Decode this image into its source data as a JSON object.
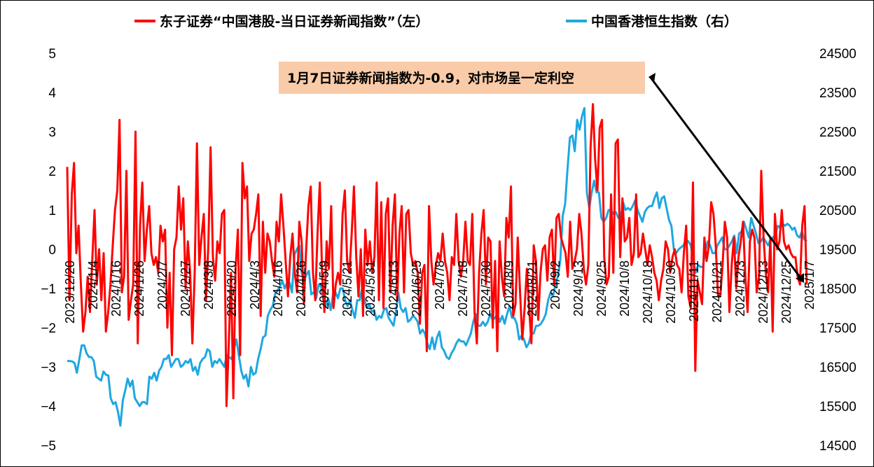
{
  "chart_data": {
    "type": "line",
    "legend": [
      {
        "label": "东子证券“中国港股-当日证券新闻指数”（左）",
        "color": "#ff0000"
      },
      {
        "label": "中国香港恒生指数（右）",
        "color": "#1ea7e1"
      }
    ],
    "x_labels": [
      "2023/12/20",
      "2024/1/4",
      "2024/1/16",
      "2024/1/26",
      "2024/2/7",
      "2024/2/27",
      "2024/3/8",
      "2024/3/20",
      "2024/4/3",
      "2024/4/16",
      "2024/4/26",
      "2024/5/9",
      "2024/5/21",
      "2024/5/31",
      "2024/6/13",
      "2024/6/25",
      "2024/7/8",
      "2024/7/18",
      "2024/7/30",
      "2024/8/9",
      "2024/8/21",
      "2024/9/2",
      "2024/9/13",
      "2024/9/25",
      "2024/10/8",
      "2024/10/18",
      "2024/10/30",
      "2024/11/11",
      "2024/11/21",
      "2024/12/3",
      "2024/12/13",
      "2024/12/25",
      "2025/1/7"
    ],
    "y_left": {
      "ticks": [
        "5",
        "4",
        "3",
        "2",
        "1",
        "0",
        "−1",
        "−2",
        "−3",
        "−4",
        "−5"
      ],
      "range": [
        -5,
        5
      ]
    },
    "y_right": {
      "ticks": [
        "24500",
        "23500",
        "22500",
        "21500",
        "20500",
        "19500",
        "18500",
        "17500",
        "16500",
        "15500",
        "14500"
      ],
      "range": [
        14500,
        24500
      ]
    },
    "series": [
      {
        "name": "东子证券“中国港股-当日证券新闻指数”（左）",
        "axis": "left",
        "color": "#ff0000",
        "values": [
          2.1,
          -1.3,
          1.4,
          2.2,
          -0.1,
          0.6,
          -0.9,
          -2.1,
          -1.6,
          -0.7,
          -1.6,
          -0.3,
          1.0,
          -0.9,
          0.0,
          -1.3,
          -0.1,
          -2.1,
          -1.6,
          -0.9,
          0.1,
          1.0,
          1.5,
          3.3,
          -1.1,
          -0.7,
          2.0,
          -1.8,
          -1.3,
          -0.9,
          3.0,
          -2.4,
          0.6,
          1.7,
          -0.3,
          0.5,
          1.1,
          -0.1,
          -0.4,
          -0.2,
          -0.6,
          0.6,
          0.2,
          0.5,
          -2.0,
          -0.6,
          -2.7,
          0.0,
          0.3,
          1.6,
          0.5,
          1.3,
          -1.0,
          0.2,
          -0.6,
          -2.4,
          -0.6,
          2.7,
          -0.4,
          0.3,
          0.9,
          -1.3,
          0.1,
          2.6,
          -0.2,
          -0.8,
          0.2,
          -0.1,
          0.9,
          1.0,
          -4.0,
          -2.4,
          -0.6,
          -3.8,
          -0.5,
          0.5,
          -2.7,
          2.2,
          1.3,
          1.6,
          -0.3,
          0.4,
          0.5,
          0.9,
          1.4,
          -1.7,
          0.7,
          -0.6,
          0.4,
          0.2,
          -0.3,
          -0.7,
          0.7,
          0.2,
          1.4,
          0.6,
          -0.3,
          -1.2,
          -0.2,
          0.4,
          -0.6,
          -1.1,
          0.7,
          0.2,
          -1.4,
          0.0,
          1.1,
          1.6,
          -0.6,
          -1.3,
          0.4,
          1.7,
          -0.6,
          -1.6,
          0.2,
          -0.5,
          1.1,
          -1.5,
          -0.9,
          -0.6,
          -0.9,
          0.9,
          1.5,
          -0.3,
          -0.6,
          0.4,
          1.6,
          -0.2,
          -1.2,
          0.0,
          -1.7,
          0.5,
          -0.4,
          0.2,
          -0.6,
          -0.2,
          1.7,
          -1.3,
          1.2,
          -1.5,
          0.9,
          1.3,
          -1.1,
          0.6,
          1.4,
          -1.3,
          0.4,
          1.1,
          -1.1,
          0.9,
          1.0,
          -0.1,
          -0.4,
          -0.3,
          -0.6,
          -1.9,
          -0.6,
          -0.4,
          -2.6,
          1.1,
          -0.3,
          -0.9,
          -0.4,
          -0.1,
          -0.3,
          0.4,
          -0.3,
          -0.6,
          -1.3,
          -0.2,
          -0.4,
          0.9,
          -0.3,
          -0.7,
          -0.3,
          0.7,
          -0.3,
          -0.4,
          0.9,
          -1.6,
          -2.4,
          -0.6,
          0.4,
          1.0,
          -0.9,
          0.3,
          0.2,
          -2.0,
          -0.3,
          -2.6,
          0.2,
          -0.7,
          -1.2,
          0.8,
          0.3,
          1.6,
          -1.7,
          -1.4,
          0.3,
          -1.1,
          -2.3,
          -1.5,
          -0.5,
          -1.5,
          -2.4,
          0.1,
          -0.3,
          -1.8,
          -0.6,
          0.0,
          0.1,
          -0.8,
          0.3,
          0.5,
          -0.9,
          0.8,
          0.9,
          0.3,
          0.1,
          -0.1,
          -0.7,
          0.7,
          -0.5,
          -0.3,
          0.0,
          0.9,
          0.4,
          -0.5,
          -0.9,
          -0.4,
          2.6,
          3.7,
          2.3,
          1.5,
          3.1,
          3.3,
          -0.2,
          -0.9,
          -0.7,
          1.4,
          -0.6,
          2.7,
          2.8,
          -0.2,
          1.3,
          0.2,
          0.3,
          0.8,
          -0.4,
          -0.1,
          1.4,
          -0.2,
          -0.1,
          0.4,
          0.0,
          -0.4,
          0.1,
          -0.2,
          -0.6,
          -0.8,
          -1.3,
          -0.8,
          -0.5,
          0.2,
          0.0,
          -0.6,
          -0.2,
          0.0,
          -0.4,
          -0.5,
          -1.1,
          -0.1,
          0.6,
          -1.2,
          -1.5,
          1.7,
          -3.1,
          -0.8,
          -1.1,
          -1.4,
          0.3,
          -0.3,
          0.1,
          1.2,
          0.9,
          0.1,
          -1.2,
          -1.2,
          -0.4,
          0.7,
          0.3,
          -1.6,
          -0.4,
          0.3,
          -1.0,
          -0.2,
          0.2,
          0.7,
          -0.7,
          -1.6,
          0.2,
          0.5,
          0.3,
          -1.1,
          -0.7,
          2.0,
          0.3,
          -0.6,
          -1.1,
          0.3,
          -2.1,
          0.9,
          0.0,
          0.2,
          1.0,
          0.2,
          0.0,
          0.1,
          -0.1,
          -0.2,
          -0.2,
          -0.7,
          -0.9,
          0.6,
          1.1,
          -0.9
        ]
      },
      {
        "name": "中国香港恒生指数（右）",
        "axis": "right",
        "color": "#1ea7e1",
        "values": [
          16650,
          16650,
          16640,
          16600,
          16350,
          16700,
          17050,
          17050,
          16850,
          16750,
          16750,
          16650,
          16250,
          16200,
          16150,
          16380,
          16300,
          16280,
          15700,
          15550,
          15600,
          15350,
          15000,
          15650,
          15900,
          16200,
          16000,
          16150,
          15700,
          15600,
          15500,
          15600,
          15600,
          15550,
          16250,
          16200,
          16350,
          16150,
          16400,
          16500,
          16700,
          16700,
          16800,
          16500,
          16600,
          16700,
          16700,
          16500,
          16550,
          16650,
          16600,
          16700,
          16400,
          16500,
          16300,
          16600,
          16700,
          16750,
          16950,
          16900,
          16500,
          16650,
          16600,
          16700,
          16600,
          16500,
          16800,
          16750,
          16700,
          16950,
          17200,
          16800,
          16400,
          16200,
          16300,
          16000,
          16500,
          16300,
          16350,
          16700,
          16950,
          17250,
          17300,
          17800,
          17950,
          18050,
          18350,
          18450,
          18550,
          18700,
          18500,
          18650,
          18650,
          18400,
          19350,
          19500,
          19600,
          18900,
          18700,
          18850,
          18950,
          18350,
          18400,
          18250,
          18600,
          18550,
          18200,
          18050,
          18250,
          17950,
          18350,
          18400,
          18250,
          18500,
          18500,
          18200,
          18050,
          18200,
          17950,
          17750,
          18200,
          18200,
          18500,
          18200,
          18000,
          18100,
          17900,
          17950,
          17700,
          17800,
          17750,
          17950,
          18000,
          17750,
          17650,
          17550,
          17900,
          18400,
          18000,
          17900,
          18000,
          17650,
          17700,
          17800,
          17750,
          17650,
          17350,
          17450,
          17350,
          17100,
          16950,
          17250,
          16950,
          17250,
          17400,
          17000,
          16900,
          16750,
          16700,
          16850,
          16950,
          17100,
          17200,
          17150,
          17150,
          17050,
          17200,
          17350,
          17650,
          17850,
          17550,
          17550,
          17650,
          17550,
          17650,
          17850,
          17700,
          17750,
          17850,
          17650,
          17800,
          17600,
          17850,
          18050,
          17750,
          17750,
          17600,
          17200,
          17300,
          17200,
          17000,
          17100,
          17350,
          17350,
          17550,
          17550,
          17600,
          17700,
          17850,
          18200,
          18400,
          18300,
          18600,
          18800,
          19200,
          20350,
          20650,
          21550,
          22350,
          22400,
          22000,
          22800,
          22550,
          22900,
          23100,
          20950,
          20550,
          20950,
          21250,
          20950,
          20950,
          20300,
          20200,
          20300,
          20500,
          20500,
          20400,
          20450,
          20300,
          20300,
          20700,
          20500,
          20550,
          20500,
          20600,
          20750,
          20500,
          20350,
          20200,
          20450,
          20550,
          20600,
          20600,
          20800,
          20950,
          20550,
          20800,
          20850,
          20550,
          20250,
          20100,
          19500,
          19400,
          19500,
          19550,
          19600,
          19750,
          19700,
          19600,
          19250,
          18900,
          19100,
          19050,
          19050,
          19450,
          19700,
          19600,
          19400,
          19400,
          19600,
          19700,
          19800,
          19500,
          19500,
          19600,
          19700,
          19850,
          19400,
          19900,
          19950,
          20200,
          20000,
          19800,
          20300,
          20100,
          19900,
          19650,
          19700,
          19800,
          19700,
          19600,
          19750,
          19800,
          19850,
          20100,
          20050,
          20150,
          20100,
          20150,
          20100,
          20000,
          20050,
          19850,
          19800,
          19950,
          19750,
          19700
        ]
      }
    ],
    "annotation": {
      "text": "1月7日证券新闻指数为-0.9，对市场呈一定利空",
      "bg_color": "#f9cba8"
    },
    "grid": false,
    "legend_position": "top"
  }
}
